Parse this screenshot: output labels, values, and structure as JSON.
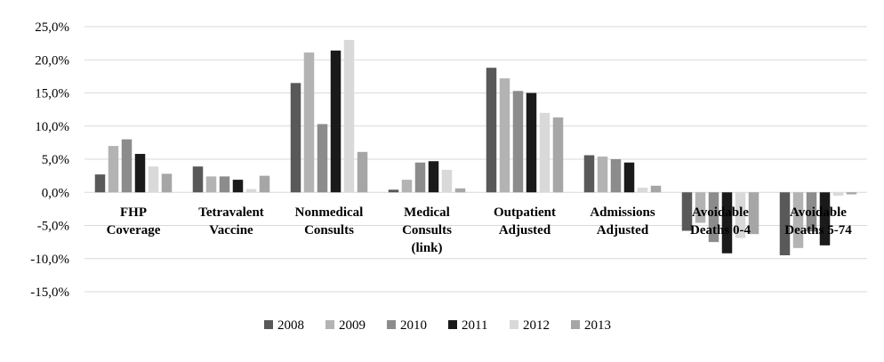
{
  "chart_data": {
    "type": "bar",
    "categories": [
      [
        "FHP",
        "Coverage"
      ],
      [
        "Tetravalent",
        "Vaccine"
      ],
      [
        "Nonmedical",
        "Consults"
      ],
      [
        "Medical",
        "Consults",
        "(link)"
      ],
      [
        "Outpatient",
        "Adjusted"
      ],
      [
        "Admissions",
        "Adjusted"
      ],
      [
        "Avoidable",
        "Deaths 0-4"
      ],
      [
        "Avoidable",
        "Deaths 5-74"
      ]
    ],
    "series": [
      {
        "name": "2008",
        "color": "#595959",
        "values": [
          2.7,
          3.9,
          16.5,
          0.4,
          18.8,
          5.6,
          -5.8,
          -9.5
        ]
      },
      {
        "name": "2009",
        "color": "#b3b3b3",
        "values": [
          7.0,
          2.4,
          21.1,
          1.9,
          17.2,
          5.4,
          -4.6,
          -8.4
        ]
      },
      {
        "name": "2010",
        "color": "#8c8c8c",
        "values": [
          8.0,
          2.4,
          10.3,
          4.5,
          15.3,
          5.0,
          -7.5,
          -5.9
        ]
      },
      {
        "name": "2011",
        "color": "#1a1a1a",
        "values": [
          5.8,
          1.9,
          21.4,
          4.7,
          15.0,
          4.5,
          -9.2,
          -8.0
        ]
      },
      {
        "name": "2012",
        "color": "#d9d9d9",
        "values": [
          3.9,
          0.5,
          23.0,
          3.4,
          12.0,
          0.7,
          -6.9,
          -0.5
        ]
      },
      {
        "name": "2013",
        "color": "#a6a6a6",
        "values": [
          2.8,
          2.5,
          6.1,
          0.6,
          11.3,
          1.0,
          -6.3,
          -0.3
        ]
      }
    ],
    "y_ticks": [
      "25,0%",
      "20,0%",
      "15,0%",
      "10,0%",
      "5,0%",
      "0,0%",
      "-5,0%",
      "-10,0%",
      "-15,0%"
    ],
    "ylim": [
      -15,
      25
    ],
    "y_tick_values": [
      25,
      20,
      15,
      10,
      5,
      0,
      -5,
      -10,
      -15
    ],
    "grid": true,
    "legend_position": "bottom"
  }
}
